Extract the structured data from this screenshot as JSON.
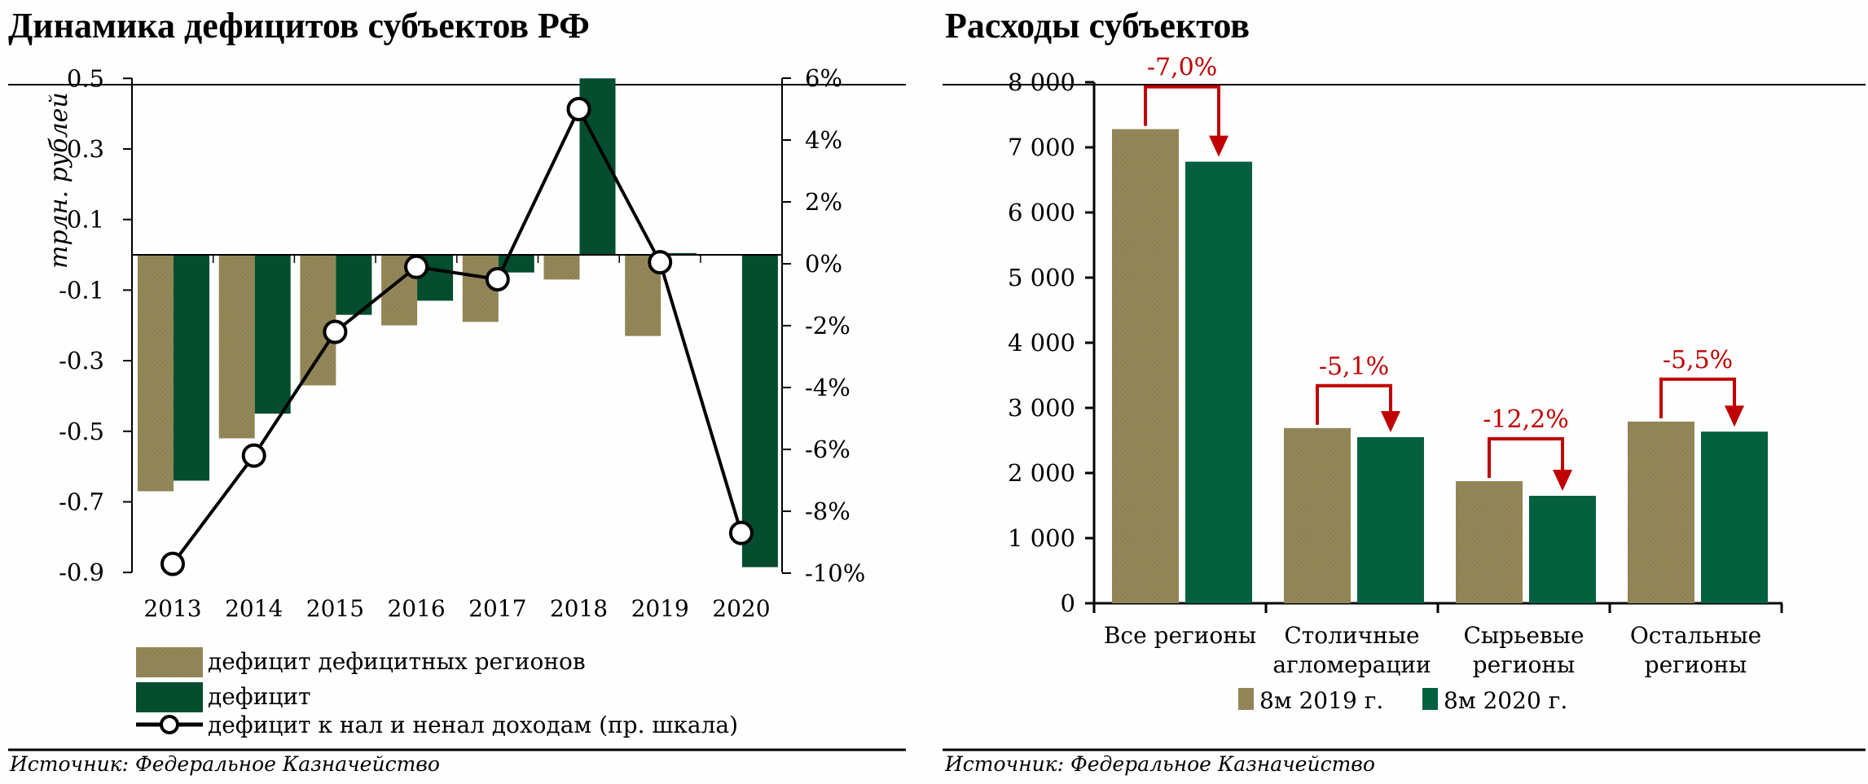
{
  "left_panel": {
    "title": "Динамика дефицитов субъектов РФ",
    "y_label": "трлн. рублей",
    "y_ticks": [
      "0.5",
      "0.3",
      "0.1",
      "-0.1",
      "-0.3",
      "-0.5",
      "-0.7",
      "-0.9"
    ],
    "y2_ticks": [
      "6%",
      "4%",
      "2%",
      "0%",
      "-2%",
      "-4%",
      "-6%",
      "-8%",
      "-10%"
    ],
    "categories": [
      "2013",
      "2014",
      "2015",
      "2016",
      "2017",
      "2018",
      "2019",
      "2020"
    ],
    "legend": [
      "дефицит дефицитных регионов",
      "дефицит",
      "дефицит к нал и ненал доходам (пр. шкала)"
    ],
    "source": "Источник:  Федеральное Казначейство"
  },
  "right_panel": {
    "title": "Расходы субъектов",
    "y_ticks": [
      "8 000",
      "7 000",
      "6 000",
      "5 000",
      "4 000",
      "3 000",
      "2 000",
      "1 000",
      "0"
    ],
    "categories": [
      [
        "Все регионы"
      ],
      [
        "Столичные",
        "агломерации"
      ],
      [
        "Сырьевые",
        "регионы"
      ],
      [
        "Остальные",
        "регионы"
      ]
    ],
    "annotations": [
      "-7,0%",
      "-5,1%",
      "-12,2%",
      "-5,5%"
    ],
    "legend": [
      "8м 2019 г.",
      "8м 2020 г."
    ],
    "source": "Источник:  Федеральное Казначейство"
  },
  "colors": {
    "tan": "#928658",
    "dark_green": "#044d2e",
    "green": "#05603f",
    "red": "#c00000",
    "line": "#000000"
  },
  "chart_data": [
    {
      "type": "bar",
      "title": "Динамика дефицитов субъектов РФ",
      "xlabel": "",
      "ylabel": "трлн. рублей",
      "ylim": [
        -0.9,
        0.5
      ],
      "y2label": "",
      "y2lim": [
        -10,
        6
      ],
      "categories": [
        "2013",
        "2014",
        "2015",
        "2016",
        "2017",
        "2018",
        "2019",
        "2020"
      ],
      "series": [
        {
          "name": "дефицит дефицитных регионов",
          "type": "bar",
          "axis": "left",
          "values": [
            -0.67,
            -0.52,
            -0.37,
            -0.2,
            -0.19,
            -0.07,
            -0.23,
            0.0
          ]
        },
        {
          "name": "дефицит",
          "type": "bar",
          "axis": "left",
          "values": [
            -0.64,
            -0.45,
            -0.17,
            -0.13,
            -0.05,
            0.5,
            0.005,
            -0.885
          ]
        },
        {
          "name": "дефицит к нал и ненал доходам (пр. шкала)",
          "type": "line",
          "axis": "right",
          "unit": "%",
          "values": [
            -9.7,
            -6.2,
            -2.2,
            -0.1,
            -0.5,
            5.0,
            0.05,
            -8.7
          ]
        }
      ],
      "legend_position": "bottom",
      "grid": false
    },
    {
      "type": "bar",
      "title": "Расходы субъектов",
      "xlabel": "",
      "ylabel": "",
      "ylim": [
        0,
        8000
      ],
      "categories": [
        "Все регионы",
        "Столичные агломерации",
        "Сырьевые регионы",
        "Остальные регионы"
      ],
      "series": [
        {
          "name": "8м 2019 г.",
          "values": [
            7280,
            2690,
            1875,
            2790
          ]
        },
        {
          "name": "8м 2020 г.",
          "values": [
            6780,
            2550,
            1650,
            2635
          ]
        }
      ],
      "annotations": [
        "-7,0%",
        "-5,1%",
        "-12,2%",
        "-5,5%"
      ],
      "legend_position": "bottom",
      "grid": false
    }
  ]
}
